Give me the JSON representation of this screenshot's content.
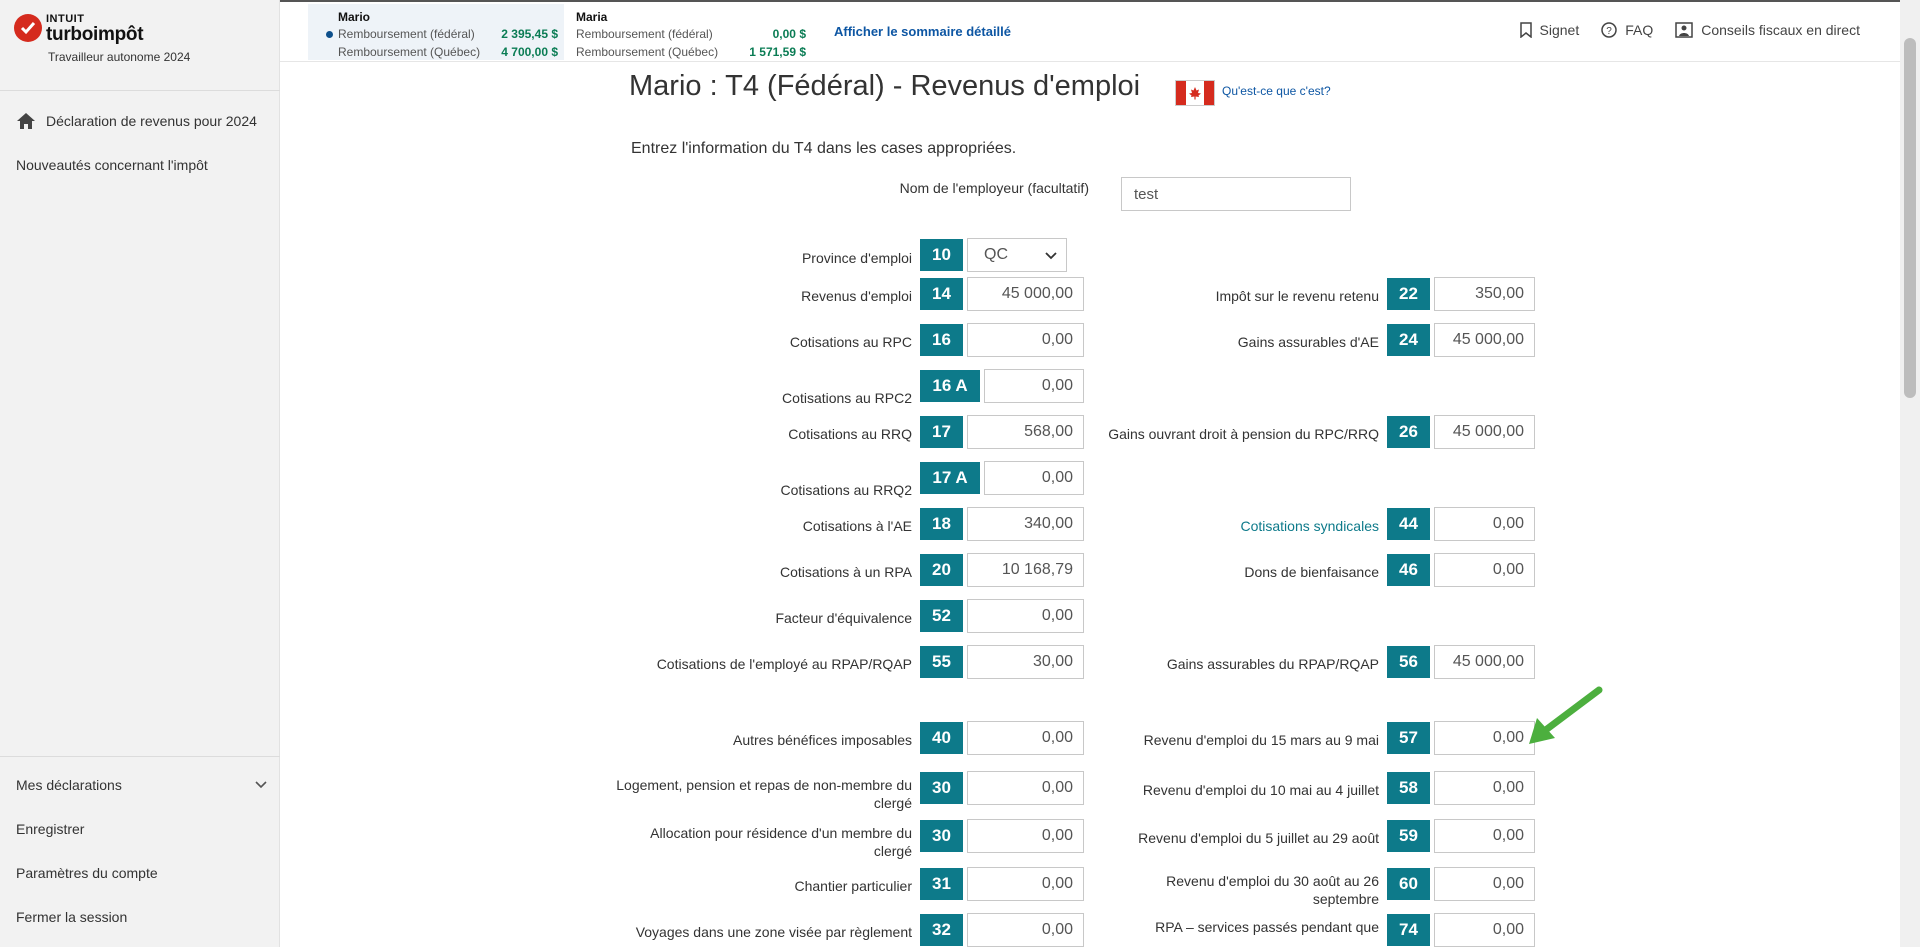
{
  "app": {
    "brand_top": "INTUIT",
    "brand_name": "turboimpôt",
    "product": "Travailleur autonome 2024",
    "colors": {
      "brand_red": "#d52b1e",
      "box_teal": "#0d7a8a",
      "refund_green": "#0a7c54",
      "link_blue": "#0d56a3",
      "arrow_green": "#4caf3e"
    }
  },
  "sidebar": {
    "home_icon": "home-icon",
    "home_label": "Déclaration de revenus pour 2024",
    "news_label": "Nouveautés concernant l'impôt",
    "bottom": {
      "declarations": "Mes déclarations",
      "save": "Enregistrer",
      "settings": "Paramètres du compte",
      "logout": "Fermer la session"
    }
  },
  "summary": {
    "mario": {
      "name": "Mario",
      "federal_label": "Remboursement (fédéral)",
      "federal_amount": "2  395,45  $",
      "quebec_label": "Remboursement (Québec)",
      "quebec_amount": "4  700,00  $"
    },
    "maria": {
      "name": "Maria",
      "federal_label": "Remboursement (fédéral)",
      "federal_amount": "0,00  $",
      "quebec_label": "Remboursement (Québec)",
      "quebec_amount": "1  571,59  $"
    },
    "details_link": "Afficher le sommaire détaillé",
    "links": {
      "bookmark": "Signet",
      "faq": "FAQ",
      "advice": "Conseils fiscaux en direct"
    }
  },
  "form": {
    "title": "Mario : T4 (Fédéral) - Revenus d'emploi",
    "whats_this": "Qu'est-ce que c'est?",
    "intro": "Entrez l'information du T4 dans les cases appropriées.",
    "employer_label": "Nom de l'employeur (facultatif)",
    "employer_value": "test",
    "province_label": "Province d'emploi",
    "province_box": "10",
    "province_value": "QC",
    "left": [
      {
        "label": "Revenus d'emploi",
        "box": "14",
        "value": "45 000,00"
      },
      {
        "label": "Cotisations au RPC",
        "box": "16",
        "value": "0,00"
      },
      {
        "label": "Cotisations au RPC2",
        "box": "16 A",
        "value": "0,00"
      },
      {
        "label": "Cotisations au RRQ",
        "box": "17",
        "value": "568,00"
      },
      {
        "label": "Cotisations au RRQ2",
        "box": "17 A",
        "value": "0,00"
      },
      {
        "label": "Cotisations à l'AE",
        "box": "18",
        "value": "340,00"
      },
      {
        "label": "Cotisations à un RPA",
        "box": "20",
        "value": "10 168,79"
      },
      {
        "label": "Facteur d'équivalence",
        "box": "52",
        "value": "0,00"
      },
      {
        "label": "Cotisations de l'employé au RPAP/RQAP",
        "box": "55",
        "value": "30,00"
      },
      {
        "label": "Autres bénéfices imposables",
        "box": "40",
        "value": "0,00"
      },
      {
        "label": "Logement, pension et repas de non-membre du clergé",
        "box": "30",
        "value": "0,00"
      },
      {
        "label": "Allocation pour résidence d'un membre du clergé",
        "box": "30",
        "value": "0,00"
      },
      {
        "label": "Chantier particulier",
        "box": "31",
        "value": "0,00"
      },
      {
        "label": "Voyages dans une zone visée par règlement",
        "box": "32",
        "value": "0,00"
      }
    ],
    "right": [
      {
        "label": "Impôt sur le revenu retenu",
        "box": "22",
        "value": "350,00"
      },
      {
        "label": "Gains assurables d'AE",
        "box": "24",
        "value": "45 000,00"
      },
      {
        "label": "Gains ouvrant droit à pension du RPC/RRQ",
        "box": "26",
        "value": "45 000,00"
      },
      {
        "label": "Cotisations syndicales",
        "box": "44",
        "value": "0,00"
      },
      {
        "label": "Dons de bienfaisance",
        "box": "46",
        "value": "0,00"
      },
      {
        "label": "Gains assurables du RPAP/RQAP",
        "box": "56",
        "value": "45 000,00"
      },
      {
        "label": "Revenu d'emploi du 15 mars au 9 mai",
        "box": "57",
        "value": "0,00"
      },
      {
        "label": "Revenu d'emploi du 10 mai au 4 juillet",
        "box": "58",
        "value": "0,00"
      },
      {
        "label": "Revenu d'emploi du 5 juillet au 29 août",
        "box": "59",
        "value": "0,00"
      },
      {
        "label": "Revenu d'emploi du 30 août au 26 septembre",
        "box": "60",
        "value": "0,00"
      },
      {
        "label": "RPA – services passés pendant que",
        "box": "74",
        "value": "0,00"
      }
    ]
  }
}
